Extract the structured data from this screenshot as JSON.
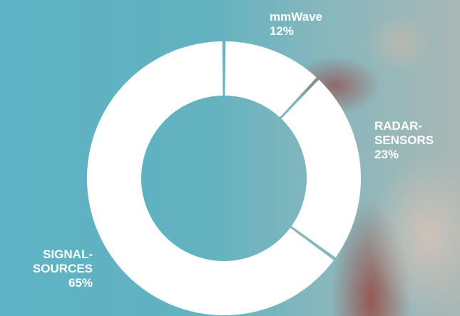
{
  "chart_data": {
    "type": "donut",
    "categories": [
      "mmWave",
      "RADAR-SENSORS",
      "SIGNAL-SOURCES"
    ],
    "values": [
      12,
      23,
      65
    ],
    "value_labels": [
      "12%",
      "23%",
      "65%"
    ],
    "color": "#ffffff"
  }
}
